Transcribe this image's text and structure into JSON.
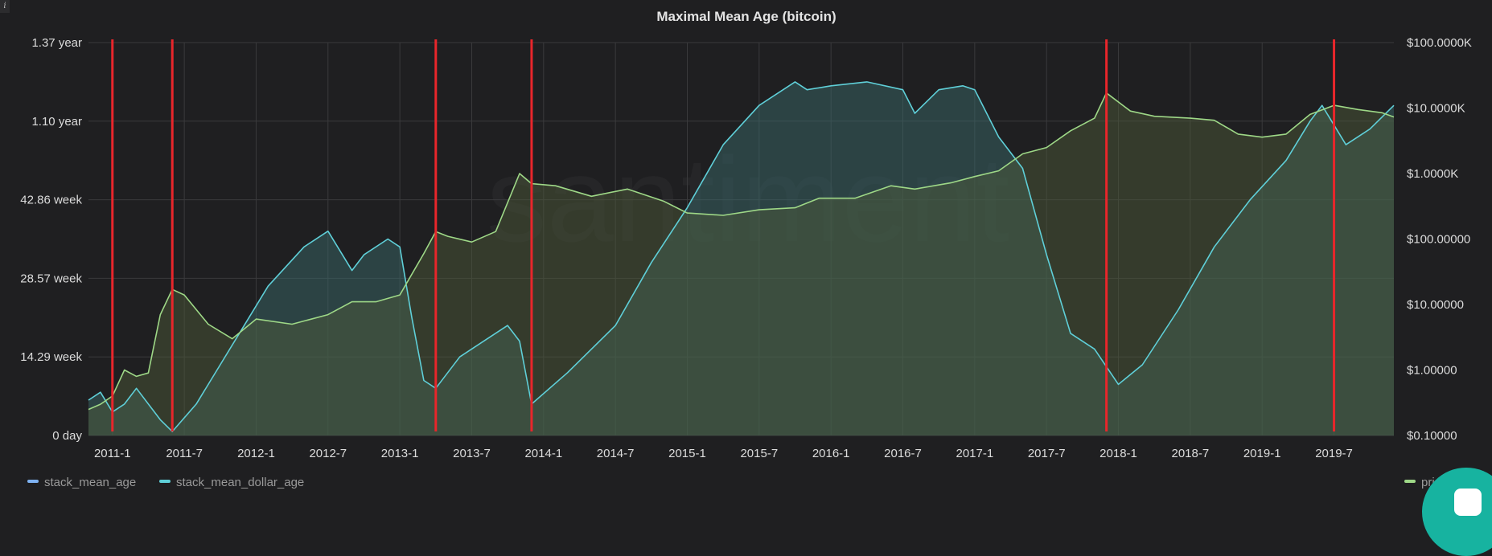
{
  "info_icon": "i",
  "chart_data": {
    "type": "area",
    "title": "Maximal Mean Age (bitcoin)",
    "x_ticks": [
      "2011-1",
      "2011-7",
      "2012-1",
      "2012-7",
      "2013-1",
      "2013-7",
      "2014-1",
      "2014-7",
      "2015-1",
      "2015-7",
      "2016-1",
      "2016-7",
      "2017-1",
      "2017-7",
      "2018-1",
      "2018-7",
      "2019-1",
      "2019-7"
    ],
    "x_range": [
      "2010-11",
      "2019-12"
    ],
    "y_left_ticks": [
      "1.37 year",
      "1.10 year",
      "42.86 week",
      "28.57 week",
      "14.29 week",
      "0 day"
    ],
    "y_left_range_days": [
      0,
      500
    ],
    "y_right_ticks": [
      "$100.0000K",
      "$10.0000K",
      "$1.0000K",
      "$100.00000",
      "$10.00000",
      "$1.00000",
      "$0.10000"
    ],
    "y_right_scale": "log",
    "y_right_range": [
      0.1,
      100000
    ],
    "grid": true,
    "legend_placement": "bottom",
    "series": [
      {
        "name": "stack_mean_age",
        "color": "#7eb2f2",
        "x": [],
        "y": []
      },
      {
        "name": "stack_mean_dollar_age",
        "color": "#5fcfd8",
        "unit": "days",
        "x": [
          "2010-11",
          "2010-12",
          "2011-1",
          "2011-2",
          "2011-3",
          "2011-5",
          "2011-6",
          "2011-8",
          "2011-10",
          "2011-12",
          "2012-2",
          "2012-5",
          "2012-7",
          "2012-9",
          "2012-10",
          "2012-12",
          "2013-1",
          "2013-2",
          "2013-3",
          "2013-4",
          "2013-6",
          "2013-8",
          "2013-10",
          "2013-11",
          "2013-12",
          "2014-3",
          "2014-7",
          "2014-10",
          "2015-1",
          "2015-4",
          "2015-7",
          "2015-10",
          "2015-11",
          "2016-1",
          "2016-4",
          "2016-7",
          "2016-8",
          "2016-10",
          "2016-12",
          "2017-1",
          "2017-3",
          "2017-5",
          "2017-7",
          "2017-9",
          "2017-11",
          "2018-1",
          "2018-3",
          "2018-6",
          "2018-9",
          "2018-12",
          "2019-3",
          "2019-5",
          "2019-6",
          "2019-8",
          "2019-10",
          "2019-12"
        ],
        "y": [
          45,
          55,
          30,
          40,
          60,
          20,
          5,
          40,
          90,
          140,
          190,
          240,
          260,
          210,
          230,
          250,
          240,
          150,
          70,
          60,
          100,
          120,
          140,
          120,
          40,
          80,
          140,
          220,
          290,
          370,
          420,
          450,
          440,
          445,
          450,
          440,
          410,
          440,
          445,
          440,
          380,
          340,
          230,
          130,
          110,
          65,
          90,
          160,
          240,
          300,
          350,
          400,
          420,
          370,
          390,
          420
        ]
      },
      {
        "name": "price_usd",
        "color": "#9ed887",
        "unit": "USD",
        "x": [
          "2010-11",
          "2010-12",
          "2011-1",
          "2011-2",
          "2011-3",
          "2011-4",
          "2011-5",
          "2011-6",
          "2011-7",
          "2011-9",
          "2011-11",
          "2012-1",
          "2012-4",
          "2012-7",
          "2012-9",
          "2012-11",
          "2013-1",
          "2013-3",
          "2013-4",
          "2013-5",
          "2013-7",
          "2013-9",
          "2013-11",
          "2013-12",
          "2014-2",
          "2014-5",
          "2014-8",
          "2014-11",
          "2015-1",
          "2015-4",
          "2015-7",
          "2015-10",
          "2015-12",
          "2016-3",
          "2016-6",
          "2016-8",
          "2016-11",
          "2017-1",
          "2017-3",
          "2017-5",
          "2017-7",
          "2017-9",
          "2017-11",
          "2017-12",
          "2018-2",
          "2018-4",
          "2018-7",
          "2018-9",
          "2018-11",
          "2019-1",
          "2019-3",
          "2019-5",
          "2019-7",
          "2019-9",
          "2019-11",
          "2019-12"
        ],
        "y": [
          0.25,
          0.3,
          0.4,
          1,
          0.8,
          0.9,
          7,
          17,
          14,
          5,
          3,
          6,
          5,
          7,
          11,
          11,
          14,
          60,
          130,
          110,
          90,
          130,
          1000,
          700,
          650,
          450,
          580,
          380,
          250,
          230,
          280,
          300,
          420,
          420,
          650,
          580,
          720,
          900,
          1100,
          2000,
          2500,
          4500,
          7000,
          17000,
          9000,
          7500,
          7000,
          6500,
          4000,
          3600,
          4000,
          8000,
          11000,
          9500,
          8500,
          7300
        ]
      }
    ],
    "vertical_markers": [
      "2011-1",
      "2011-6",
      "2013-4",
      "2013-12",
      "2017-12",
      "2019-7"
    ],
    "legend": [
      "stack_mean_age",
      "stack_mean_dollar_age",
      "price_usd"
    ],
    "watermark": "santiment"
  }
}
